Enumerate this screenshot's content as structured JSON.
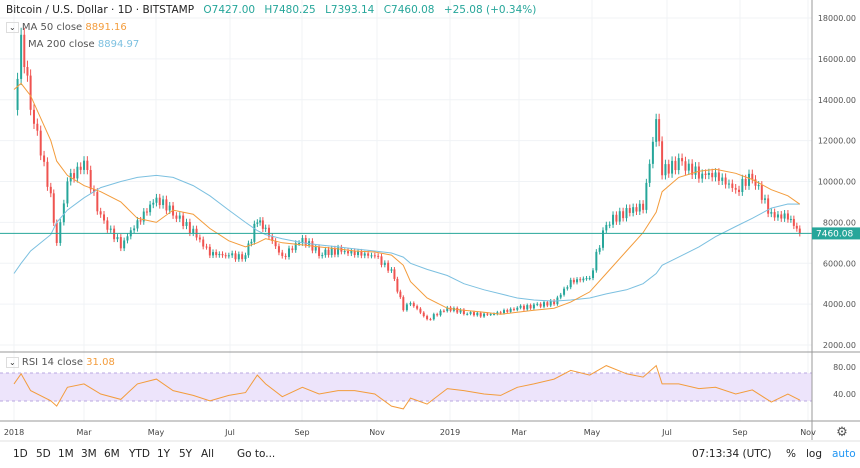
{
  "header": {
    "symbol": "Bitcoin / U.S. Dollar · 1D · BITSTAMP",
    "open": "O7427.00",
    "high": "H7480.25",
    "low": "L7393.14",
    "close": "C7460.08",
    "change": "+25.08 (+0.34%)"
  },
  "indicators": {
    "ma50": {
      "label": "MA  50 close",
      "value": "8891.16",
      "color": "#f39c3c"
    },
    "ma200": {
      "label": "MA  200 close",
      "value": "8894.97",
      "color": "#7cc0e0"
    },
    "rsi": {
      "label": "RSI  14 close",
      "value": "31.08",
      "color": "#f39c3c"
    }
  },
  "colors": {
    "up": "#26a69a",
    "down": "#ef5350",
    "last_price_line": "#26a69a",
    "rsi_band": "#ede4fb"
  },
  "last_price_label": "7460.08",
  "price_ticks": [
    "18000.00",
    "16000.00",
    "14000.00",
    "12000.00",
    "10000.00",
    "8000.00",
    "6000.00",
    "4000.00",
    "2000.00"
  ],
  "rsi_ticks": [
    "80.00",
    "40.00"
  ],
  "time_ticks": [
    "2018",
    "Mar",
    "May",
    "Jul",
    "Sep",
    "Nov",
    "2019",
    "Mar",
    "May",
    "Jul",
    "Sep",
    "Nov"
  ],
  "toolbar": {
    "ranges": [
      "1D",
      "5D",
      "1M",
      "3M",
      "6M",
      "YTD",
      "1Y",
      "5Y",
      "All"
    ],
    "goto": "Go to...",
    "clock": "07:13:34 (UTC)",
    "percent": "%",
    "log": "log",
    "auto": "auto"
  },
  "chart_data": {
    "type": "candlestick",
    "x": [
      "2018-01-01",
      "2018-01-07",
      "2018-01-15",
      "2018-02-01",
      "2018-02-06",
      "2018-02-15",
      "2018-03-01",
      "2018-03-15",
      "2018-04-01",
      "2018-04-15",
      "2018-05-01",
      "2018-05-15",
      "2018-06-01",
      "2018-06-15",
      "2018-07-01",
      "2018-07-15",
      "2018-07-25",
      "2018-08-01",
      "2018-08-15",
      "2018-09-01",
      "2018-09-15",
      "2018-10-01",
      "2018-10-15",
      "2018-11-01",
      "2018-11-15",
      "2018-11-25",
      "2018-12-01",
      "2018-12-15",
      "2019-01-01",
      "2019-01-15",
      "2019-02-01",
      "2019-02-15",
      "2019-03-01",
      "2019-03-15",
      "2019-04-01",
      "2019-04-15",
      "2019-05-01",
      "2019-05-15",
      "2019-06-01",
      "2019-06-15",
      "2019-06-26",
      "2019-07-01",
      "2019-07-15",
      "2019-08-01",
      "2019-08-15",
      "2019-09-01",
      "2019-09-15",
      "2019-10-01",
      "2019-10-15",
      "2019-10-25"
    ],
    "close": [
      13500,
      17000,
      13800,
      9200,
      6900,
      10000,
      10900,
      8200,
      6900,
      8000,
      9200,
      8500,
      7500,
      6500,
      6350,
      6300,
      8200,
      7600,
      6300,
      7200,
      6500,
      6600,
      6500,
      6350,
      5600,
      3800,
      4100,
      3250,
      3800,
      3600,
      3450,
      3600,
      3800,
      3900,
      4100,
      5100,
      5300,
      8000,
      8500,
      8800,
      13000,
      10500,
      10900,
      10400,
      10300,
      9600,
      10300,
      8300,
      8300,
      7460
    ],
    "ma50": [
      14500,
      14800,
      14200,
      12000,
      11000,
      10300,
      9800,
      9500,
      9000,
      8200,
      8000,
      8600,
      8400,
      7700,
      7100,
      6800,
      7000,
      7200,
      7000,
      6900,
      6800,
      6700,
      6600,
      6550,
      6400,
      5900,
      5100,
      4300,
      3800,
      3700,
      3600,
      3500,
      3600,
      3700,
      3800,
      4100,
      4600,
      5500,
      6600,
      7500,
      8500,
      9500,
      10200,
      10500,
      10600,
      10400,
      10100,
      9600,
      9300,
      8891
    ],
    "ma200": [
      5500,
      6000,
      6600,
      7400,
      8000,
      8600,
      9200,
      9700,
      10000,
      10200,
      10300,
      10200,
      9800,
      9300,
      8600,
      8000,
      7600,
      7400,
      7200,
      7000,
      6900,
      6800,
      6700,
      6600,
      6500,
      6300,
      6000,
      5700,
      5400,
      5000,
      4700,
      4500,
      4300,
      4200,
      4150,
      4200,
      4300,
      4500,
      4700,
      5000,
      5500,
      5900,
      6300,
      6800,
      7300,
      7800,
      8200,
      8700,
      8900,
      8895
    ],
    "rsi": [
      55,
      70,
      45,
      30,
      22,
      50,
      55,
      40,
      32,
      55,
      62,
      45,
      38,
      30,
      38,
      42,
      68,
      55,
      36,
      50,
      40,
      45,
      45,
      40,
      22,
      18,
      34,
      25,
      48,
      45,
      40,
      38,
      50,
      55,
      62,
      75,
      68,
      82,
      70,
      65,
      82,
      55,
      55,
      48,
      50,
      40,
      46,
      28,
      40,
      31
    ],
    "price_ylim": [
      2000,
      18000
    ],
    "rsi_ylim": [
      0,
      100
    ],
    "rsi_band": [
      30,
      70
    ],
    "grid": true
  }
}
